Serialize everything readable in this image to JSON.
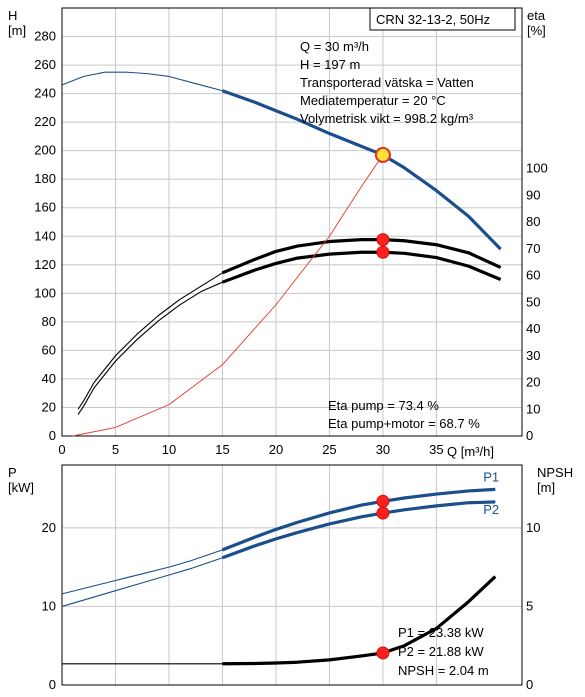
{
  "chart_data": [
    {
      "type": "line",
      "title": "CRN 32-13-2, 50Hz",
      "xlabel": "Q [m³/h]",
      "ylabel": "H [m]",
      "ylabel2": "eta [%]",
      "xlim": [
        0,
        43
      ],
      "ylim": [
        0,
        300
      ],
      "ylim2": [
        0,
        160
      ],
      "xticks": [
        0,
        5,
        10,
        15,
        20,
        25,
        30,
        35
      ],
      "yticks": [
        0,
        20,
        40,
        60,
        80,
        100,
        120,
        140,
        160,
        180,
        200,
        220,
        240,
        260,
        280
      ],
      "yticks2": [
        0,
        10,
        20,
        30,
        40,
        50,
        60,
        70,
        80,
        90,
        100
      ],
      "grid": true,
      "annotations": [
        "Q = 30 m³/h",
        "H = 197 m",
        "Transporterad vätska = Vatten",
        "Mediatemperatur = 20 °C",
        "Volymetrisk vikt = 998.2 kg/m³"
      ],
      "annotations_bottom": [
        "Eta pump = 73.4 %",
        "Eta pump+motor = 68.7 %"
      ],
      "series": [
        {
          "color": "#1a4f8b",
          "axis": "left",
          "operating_range": [
            15,
            41
          ],
          "x": [
            0,
            2,
            4,
            6,
            8,
            10,
            12,
            15,
            18,
            20,
            22,
            25,
            28,
            30,
            32,
            35,
            38,
            41
          ],
          "y": [
            246,
            252,
            255,
            255,
            254,
            252,
            248,
            242,
            234,
            228,
            222,
            212,
            203,
            197,
            188,
            172,
            154,
            131
          ]
        },
        {
          "color": "#000000",
          "axis": "right",
          "operating_range": [
            15,
            41
          ],
          "x": [
            1.5,
            2,
            3,
            5,
            7,
            9,
            11,
            13,
            15,
            18,
            20,
            22,
            25,
            28,
            30,
            32,
            35,
            38,
            41
          ],
          "y": [
            10,
            13,
            20,
            30,
            38,
            45,
            51,
            56,
            61,
            66,
            69,
            71,
            72.7,
            73.4,
            73.4,
            73,
            71.5,
            68.5,
            63
          ]
        },
        {
          "color": "#000000",
          "axis": "right",
          "operating_range": [
            15,
            41
          ],
          "x": [
            1.5,
            2,
            3,
            5,
            7,
            9,
            11,
            13,
            15,
            18,
            20,
            22,
            25,
            28,
            30,
            32,
            35,
            38,
            41
          ],
          "y": [
            8,
            11,
            18,
            28,
            36,
            43,
            49,
            54,
            57.5,
            62,
            64.5,
            66.5,
            68,
            68.7,
            68.7,
            68.3,
            66.7,
            63.5,
            58.5
          ]
        },
        {
          "color": "#e03a2e",
          "axis": "left",
          "x": [
            1,
            5,
            10,
            15,
            20,
            25,
            28,
            30
          ],
          "y": [
            0,
            6,
            22,
            50,
            92,
            140,
            175,
            197
          ]
        }
      ],
      "markers": [
        {
          "x": 30,
          "y": 197,
          "axis": "left",
          "style": "ring"
        },
        {
          "x": 30,
          "y": 73.4,
          "axis": "right"
        },
        {
          "x": 30,
          "y": 68.7,
          "axis": "right"
        }
      ]
    },
    {
      "type": "line",
      "xlabel": "",
      "ylabel": "P [kW]",
      "ylabel2": "NPSH [m]",
      "xlim": [
        0,
        43
      ],
      "ylim": [
        0,
        28
      ],
      "ylim2": [
        0,
        14
      ],
      "xticks": [
        0,
        5,
        10,
        15,
        20,
        25,
        30,
        35
      ],
      "yticks": [
        0,
        10,
        20
      ],
      "yticks2": [
        0,
        5,
        10
      ],
      "grid": true,
      "annotations": [
        "P1 = 23.38 kW",
        "P2 = 21.88 kW",
        "NPSH = 2.04 m"
      ],
      "series": [
        {
          "name": "P1",
          "color": "#1a4f8b",
          "axis": "left",
          "operating_range": [
            15,
            40.5
          ],
          "x": [
            0,
            5,
            10,
            12,
            15,
            18,
            20,
            22,
            25,
            28,
            30,
            32,
            35,
            38,
            40.5
          ],
          "y": [
            11.6,
            13.3,
            15,
            15.8,
            17.2,
            18.8,
            19.8,
            20.7,
            21.9,
            22.9,
            23.38,
            23.8,
            24.3,
            24.7,
            24.9
          ]
        },
        {
          "name": "P2",
          "color": "#1a4f8b",
          "axis": "left",
          "operating_range": [
            15,
            40.5
          ],
          "x": [
            0,
            5,
            10,
            12,
            15,
            18,
            20,
            22,
            25,
            28,
            30,
            32,
            35,
            38,
            40.5
          ],
          "y": [
            10,
            12,
            14,
            14.8,
            16.2,
            17.7,
            18.6,
            19.4,
            20.5,
            21.4,
            21.88,
            22.3,
            22.8,
            23.2,
            23.3
          ]
        },
        {
          "color": "#000000",
          "axis": "right",
          "operating_range": [
            15,
            40.5
          ],
          "x": [
            0,
            5,
            10,
            15,
            18,
            20,
            22,
            25,
            28,
            30,
            32,
            35,
            38,
            40.5
          ],
          "y": [
            1.35,
            1.35,
            1.35,
            1.35,
            1.37,
            1.4,
            1.45,
            1.6,
            1.85,
            2.04,
            2.5,
            3.6,
            5.3,
            6.9
          ]
        }
      ],
      "markers": [
        {
          "x": 30,
          "y": 23.38,
          "axis": "left"
        },
        {
          "x": 30,
          "y": 21.88,
          "axis": "left"
        },
        {
          "x": 30,
          "y": 2.04,
          "axis": "right"
        }
      ]
    }
  ]
}
